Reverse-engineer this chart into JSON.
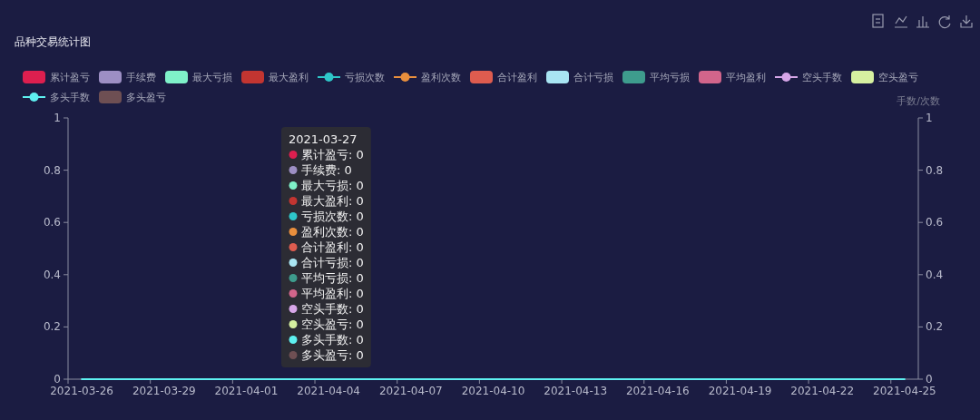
{
  "chart_data": {
    "type": "bar",
    "title": "品种交易统计图",
    "y2label": "手数/次数",
    "categories": [
      "2021-03-26",
      null,
      null,
      "2021-03-29",
      null,
      null,
      "2021-04-01",
      null,
      null,
      "2021-04-04",
      null,
      null,
      "2021-04-07",
      null,
      null,
      "2021-04-10",
      null,
      null,
      "2021-04-13",
      null,
      null,
      "2021-04-16",
      null,
      null,
      "2021-04-19",
      null,
      null,
      "2021-04-22",
      null,
      null,
      "2021-04-25"
    ],
    "series": [
      {
        "name": "累计盈亏",
        "color": "#dd1f4f",
        "values": [
          0,
          0,
          0,
          0,
          0,
          0,
          0,
          0,
          0,
          0,
          0,
          0,
          0,
          0,
          0,
          0,
          0,
          0,
          0,
          0,
          0,
          0,
          0,
          0,
          0,
          0,
          0,
          0,
          0,
          0,
          0
        ]
      },
      {
        "name": "手续费",
        "color": "#9d8fc4",
        "values": [
          0,
          0,
          0,
          0,
          0,
          0,
          0,
          0,
          0,
          0,
          0,
          0,
          0,
          0,
          0,
          0,
          0,
          0,
          0,
          0,
          0,
          0,
          0,
          0,
          0,
          0,
          0,
          0,
          0,
          0,
          0
        ]
      },
      {
        "name": "最大亏损",
        "color": "#7ff1c9",
        "values": [
          0,
          0,
          0,
          0,
          0,
          0,
          0,
          0,
          0,
          0,
          0,
          0,
          0,
          0,
          0,
          0,
          0,
          0,
          0,
          0,
          0,
          0,
          0,
          0,
          0,
          0,
          0,
          0,
          0,
          0,
          0
        ]
      },
      {
        "name": "最大盈利",
        "color": "#c23531",
        "values": [
          0,
          0,
          0,
          0,
          0,
          0,
          0,
          0,
          0,
          0,
          0,
          0,
          0,
          0,
          0,
          0,
          0,
          0,
          0,
          0,
          0,
          0,
          0,
          0,
          0,
          0,
          0,
          0,
          0,
          0,
          0
        ]
      },
      {
        "name": "亏损次数",
        "type": "line",
        "color": "#2ec7c9",
        "values": [
          null,
          null,
          null,
          null,
          null,
          null,
          null,
          null,
          null,
          null,
          null,
          null,
          null,
          null,
          null,
          null,
          null,
          null,
          null,
          null,
          null,
          null,
          null,
          null,
          null,
          null,
          null,
          null,
          null,
          null,
          null
        ]
      },
      {
        "name": "盈利次数",
        "type": "line",
        "color": "#e98f3d",
        "values": [
          null,
          null,
          null,
          null,
          null,
          null,
          null,
          null,
          null,
          null,
          null,
          null,
          null,
          null,
          null,
          null,
          null,
          null,
          null,
          null,
          null,
          null,
          null,
          null,
          null,
          null,
          null,
          null,
          null,
          null,
          null
        ]
      },
      {
        "name": "合计盈利",
        "color": "#de5c4f",
        "values": [
          0,
          0,
          0,
          0,
          0,
          0,
          0,
          0,
          0,
          0,
          0,
          0,
          0,
          0,
          0,
          0,
          0,
          0,
          0,
          0,
          0,
          0,
          0,
          0,
          0,
          0,
          0,
          0,
          0,
          0,
          0
        ]
      },
      {
        "name": "合计亏损",
        "color": "#a9e5f3",
        "values": [
          0,
          0,
          0,
          0,
          0,
          0,
          0,
          0,
          0,
          0,
          0,
          0,
          0,
          0,
          0,
          0,
          0,
          0,
          0,
          0,
          0,
          0,
          0,
          0,
          0,
          0,
          0,
          0,
          0,
          0,
          0
        ]
      },
      {
        "name": "平均亏损",
        "color": "#3e9c8d",
        "values": [
          0,
          0,
          0,
          0,
          0,
          0,
          0,
          0,
          0,
          0,
          0,
          0,
          0,
          0,
          0,
          0,
          0,
          0,
          0,
          0,
          0,
          0,
          0,
          0,
          0,
          0,
          0,
          0,
          0,
          0,
          0
        ]
      },
      {
        "name": "平均盈利",
        "color": "#d2658b",
        "values": [
          0,
          0,
          0,
          0,
          0,
          0,
          0,
          0,
          0,
          0,
          0,
          0,
          0,
          0,
          0,
          0,
          0,
          0,
          0,
          0,
          0,
          0,
          0,
          0,
          0,
          0,
          0,
          0,
          0,
          0,
          0
        ]
      },
      {
        "name": "空头手数",
        "type": "line",
        "color": "#d7a6e8",
        "values": [
          null,
          null,
          null,
          null,
          null,
          null,
          null,
          null,
          null,
          null,
          null,
          null,
          null,
          null,
          null,
          null,
          null,
          null,
          null,
          null,
          null,
          null,
          null,
          null,
          null,
          null,
          null,
          null,
          null,
          null,
          null
        ]
      },
      {
        "name": "空头盈亏",
        "color": "#d6f0a0",
        "values": [
          0,
          0,
          0,
          0,
          0,
          0,
          0,
          0,
          0,
          0,
          0,
          0,
          0,
          0,
          0,
          0,
          0,
          0,
          0,
          0,
          0,
          0,
          0,
          0,
          0,
          0,
          0,
          0,
          0,
          0,
          0
        ]
      },
      {
        "name": "多头手数",
        "type": "line",
        "color": "#5ef0f0",
        "values": [
          0,
          0,
          0,
          0,
          0,
          0,
          0,
          0,
          0,
          0,
          0,
          0,
          0,
          0,
          0,
          0,
          0,
          0,
          0,
          0,
          0,
          0,
          0,
          0,
          0,
          0,
          0,
          0,
          0,
          0,
          0
        ]
      },
      {
        "name": "多头盈亏",
        "color": "#6e4f53",
        "values": [
          0,
          0,
          0,
          0,
          0,
          0,
          0,
          0,
          0,
          0,
          0,
          0,
          0,
          0,
          0,
          0,
          0,
          0,
          0,
          0,
          0,
          0,
          0,
          0,
          0,
          0,
          0,
          0,
          0,
          0,
          0
        ]
      }
    ],
    "ylim": [
      0,
      1
    ],
    "yticks": [
      0,
      0.2,
      0.4,
      0.6,
      0.8,
      1
    ],
    "y2lim": [
      0,
      1
    ],
    "y2ticks": [
      0,
      0.2,
      0.4,
      0.6,
      0.8,
      1
    ],
    "legend": "top",
    "annotations": [
      "2021-03-27",
      "累计盈亏: 0",
      "手续费: 0",
      "最大亏损: 0",
      "最大盈利: 0",
      "亏损次数: 0",
      "盈利次数: 0",
      "合计盈利: 0",
      "合计亏损: 0",
      "平均亏损: 0",
      "平均盈利: 0",
      "空头手数: 0",
      "空头盈亏: 0",
      "多头手数: 0",
      "多头盈亏: 0"
    ]
  }
}
